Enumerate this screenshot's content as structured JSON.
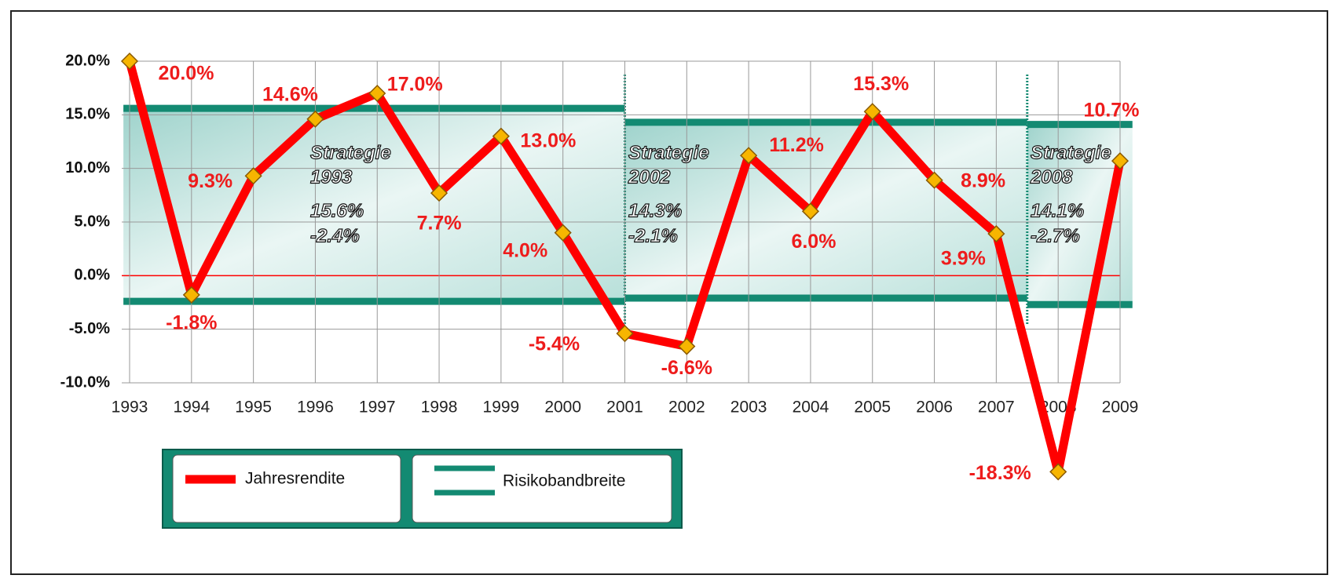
{
  "chart_data": {
    "type": "line",
    "x": [
      1993,
      1994,
      1995,
      1996,
      1997,
      1998,
      1999,
      2000,
      2001,
      2002,
      2003,
      2004,
      2005,
      2006,
      2007,
      2008,
      2009
    ],
    "xlim": [
      1993,
      2009
    ],
    "xticks": [
      1993,
      1994,
      1995,
      1996,
      1997,
      1998,
      1999,
      2000,
      2001,
      2002,
      2003,
      2004,
      2005,
      2006,
      2007,
      2008,
      2009
    ],
    "ylim": [
      -10,
      20
    ],
    "yticks": [
      {
        "value": 20,
        "label": "20.0%"
      },
      {
        "value": 15,
        "label": "15.0%"
      },
      {
        "value": 10,
        "label": "10.0%"
      },
      {
        "value": 5,
        "label": "5.0%"
      },
      {
        "value": 0,
        "label": "0.0%"
      },
      {
        "value": -5,
        "label": "-5.0%"
      },
      {
        "value": -10,
        "label": "-10.0%"
      }
    ],
    "grid": true,
    "series": [
      {
        "name": "Jahresrendite",
        "color": "#ff0000",
        "values": [
          20.0,
          -1.8,
          9.3,
          14.6,
          17.0,
          7.7,
          13.0,
          4.0,
          -5.4,
          -6.6,
          11.2,
          6.0,
          15.3,
          8.9,
          3.9,
          -18.3,
          10.7
        ],
        "value_labels": [
          "20.0%",
          "-1.8%",
          "9.3%",
          "14.6%",
          "17.0%",
          "7.7%",
          "13.0%",
          "4.0%",
          "-5.4%",
          "-6.6%",
          "11.2%",
          "6.0%",
          "15.3%",
          "8.9%",
          "3.9%",
          "-18.3%",
          "10.7%"
        ]
      }
    ],
    "bands": {
      "name": "Risikobandbreite",
      "color": "#138a72",
      "items": [
        {
          "name": "Strategie",
          "year": "1993",
          "start": 1992.9,
          "end": 2001,
          "upper": 15.6,
          "lower": -2.4,
          "upper_label": "15.6%",
          "lower_label": "-2.4%"
        },
        {
          "name": "Strategie",
          "year": "2002",
          "start": 2001,
          "end": 2007.5,
          "upper": 14.3,
          "lower": -2.1,
          "upper_label": "14.3%",
          "lower_label": "-2.1%"
        },
        {
          "name": "Strategie",
          "year": "2008",
          "start": 2007.5,
          "end": 2009.2,
          "upper": 14.1,
          "lower": -2.7,
          "upper_label": "14.1%",
          "lower_label": "-2.7%"
        }
      ]
    }
  }
}
